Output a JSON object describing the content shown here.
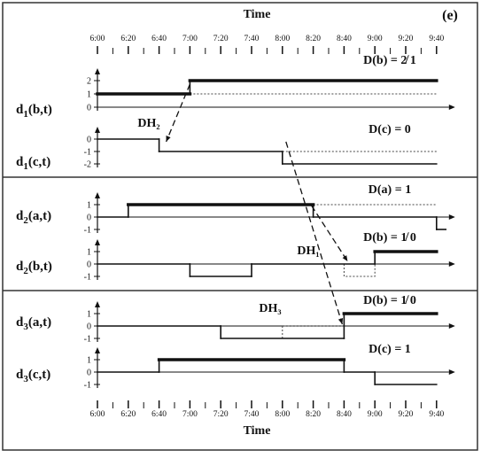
{
  "panel_label": "(e)",
  "top_axis_title": "Time",
  "bottom_axis_title": "Time",
  "time_ticks": [
    "6:00",
    "6:20",
    "6:40",
    "7:00",
    "7:20",
    "7:40",
    "8:00",
    "8:20",
    "8:40",
    "9:00",
    "9:20",
    "9:40"
  ],
  "rows": [
    {
      "id": "d1b",
      "label_main": "d",
      "label_sub": "1",
      "label_args": "(b,t)",
      "yticks": [
        "2",
        "1",
        "0"
      ],
      "annotation": "D(b) = 2̸ 1",
      "solid": [
        [
          0,
          1
        ],
        [
          3,
          1
        ],
        [
          3,
          2
        ],
        [
          11,
          2
        ]
      ],
      "dotted": [
        [
          3,
          1
        ],
        [
          11,
          1
        ]
      ],
      "zero_line": true
    },
    {
      "id": "d1c",
      "label_main": "d",
      "label_sub": "1",
      "label_args": "(c,t)",
      "yticks": [
        "0",
        "-1",
        "-2"
      ],
      "annotation": "D(c) = 0",
      "extra_label": "DH₂",
      "solid": [
        [
          0,
          0
        ],
        [
          2,
          0
        ],
        [
          2,
          -1
        ],
        [
          6,
          -1
        ],
        [
          6,
          -2
        ],
        [
          11,
          -2
        ]
      ],
      "dotted": [
        [
          6,
          -1
        ],
        [
          11,
          -1
        ]
      ],
      "zero_line": false
    },
    {
      "id": "d2a",
      "label_main": "d",
      "label_sub": "2",
      "label_args": "(a,t)",
      "yticks": [
        "1",
        "0",
        "-1"
      ],
      "annotation": "D(a) = 1",
      "solid": [
        [
          0,
          0
        ],
        [
          1,
          0
        ],
        [
          1,
          1
        ],
        [
          7,
          1
        ],
        [
          7,
          0
        ],
        [
          11,
          0
        ],
        [
          11,
          -1
        ],
        [
          11.3,
          -1
        ]
      ],
      "dotted": [
        [
          7,
          1
        ],
        [
          11,
          1
        ]
      ],
      "zero_line": true
    },
    {
      "id": "d2b",
      "label_main": "d",
      "label_sub": "2",
      "label_args": "(b,t)",
      "yticks": [
        "1",
        "0",
        "-1"
      ],
      "annotation": "D(b) = 1̸ 0",
      "extra_label": "DH₁",
      "solid": [
        [
          0,
          0
        ],
        [
          3,
          0
        ],
        [
          3,
          -1
        ],
        [
          5,
          -1
        ],
        [
          5,
          0
        ],
        [
          9,
          0
        ],
        [
          9,
          1
        ],
        [
          11,
          1
        ]
      ],
      "dotted": [
        [
          8,
          0
        ],
        [
          8,
          -1
        ],
        [
          9,
          -1
        ],
        [
          9,
          0
        ]
      ],
      "zero_line": true
    },
    {
      "id": "d3a",
      "label_main": "d",
      "label_sub": "3",
      "label_args": "(a,t)",
      "yticks": [
        "1",
        "0",
        "-1"
      ],
      "annotation": "D(b) = 1̸ 0",
      "extra_label": "DH₃",
      "solid": [
        [
          0,
          0
        ],
        [
          4,
          0
        ],
        [
          4,
          -1
        ],
        [
          8,
          -1
        ],
        [
          8,
          1
        ],
        [
          11,
          1
        ]
      ],
      "dotted": [
        [
          6,
          -1
        ],
        [
          6,
          0
        ],
        [
          8,
          0
        ]
      ],
      "zero_line": true
    },
    {
      "id": "d3c",
      "label_main": "d",
      "label_sub": "3",
      "label_args": "(c,t)",
      "yticks": [
        "1",
        "0",
        "-1"
      ],
      "annotation": "D(c) = 1",
      "solid": [
        [
          0,
          0
        ],
        [
          2,
          0
        ],
        [
          2,
          1
        ],
        [
          8,
          1
        ],
        [
          8,
          0
        ],
        [
          9,
          0
        ],
        [
          9,
          -1
        ],
        [
          11,
          -1
        ]
      ],
      "dotted": [],
      "zero_line": true
    }
  ],
  "colors": {
    "line": "#111111",
    "frame": "#333333",
    "dotted": "#444444"
  }
}
